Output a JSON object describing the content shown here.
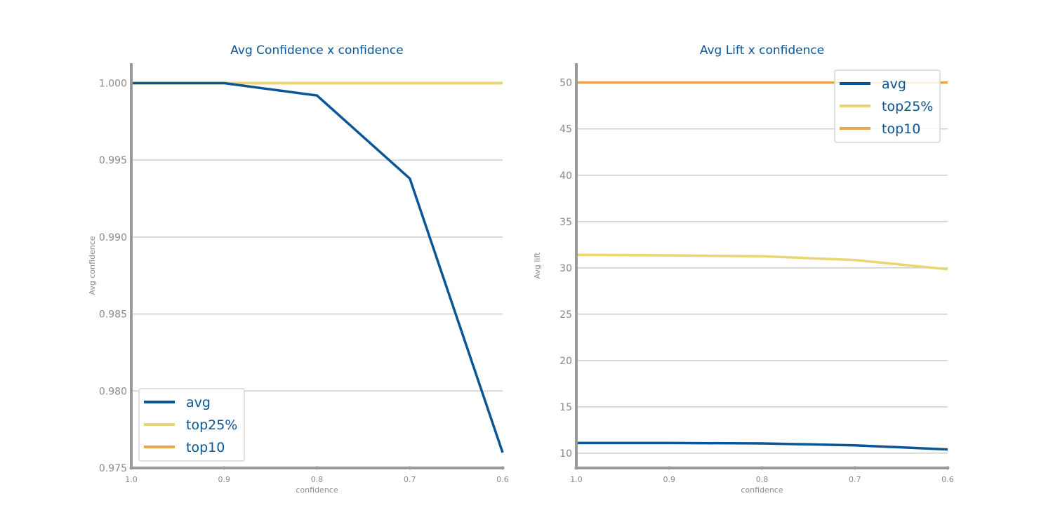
{
  "colors": {
    "avg": "#0a5596",
    "top25%": "#ead670",
    "top10": "#e8a94a",
    "title": "#0a5596",
    "axis": "#9a9a9a",
    "grid": "#cfcfcf"
  },
  "chart_data": [
    {
      "type": "line",
      "title": "Avg Confidence x confidence",
      "xlabel": "confidence",
      "ylabel": "Avg confidence",
      "x": [
        1.0,
        0.9,
        0.8,
        0.7,
        0.6
      ],
      "x_tick_labels": [
        "1.0",
        "0.9",
        "0.8",
        "0.7",
        "0.6"
      ],
      "xlim": [
        1.0,
        0.6
      ],
      "ylim": [
        0.975,
        1.0013
      ],
      "y_ticks": [
        0.975,
        0.98,
        0.985,
        0.99,
        0.995,
        1.0
      ],
      "y_tick_labels": [
        "0.975",
        "0.980",
        "0.985",
        "0.990",
        "0.995",
        "1.000"
      ],
      "grid": "horizontal",
      "legend_position": "lower-left",
      "series": [
        {
          "name": "avg",
          "values": [
            1.0,
            1.0,
            0.9992,
            0.9938,
            0.976
          ]
        },
        {
          "name": "top25%",
          "values": [
            1.0,
            1.0,
            1.0,
            1.0,
            1.0
          ]
        },
        {
          "name": "top10",
          "values": [
            1.0,
            1.0,
            1.0,
            1.0,
            1.0
          ]
        }
      ]
    },
    {
      "type": "line",
      "title": "Avg Lift x confidence",
      "xlabel": "confidence",
      "ylabel": "Avg lift",
      "x": [
        1.0,
        0.9,
        0.8,
        0.7,
        0.6
      ],
      "x_tick_labels": [
        "1.0",
        "0.9",
        "0.8",
        "0.7",
        "0.6"
      ],
      "xlim": [
        1.0,
        0.6
      ],
      "ylim": [
        8.4,
        52.1
      ],
      "y_ticks": [
        10,
        15,
        20,
        25,
        30,
        35,
        40,
        45,
        50
      ],
      "y_tick_labels": [
        "10",
        "15",
        "20",
        "25",
        "30",
        "35",
        "40",
        "45",
        "50"
      ],
      "grid": "horizontal",
      "legend_position": "upper-right",
      "series": [
        {
          "name": "avg",
          "values": [
            11.1,
            11.1,
            11.05,
            10.85,
            10.4
          ]
        },
        {
          "name": "top25%",
          "values": [
            31.4,
            31.35,
            31.25,
            30.85,
            29.85
          ]
        },
        {
          "name": "top10",
          "values": [
            50.0,
            50.0,
            50.0,
            50.0,
            50.0
          ]
        }
      ]
    }
  ]
}
